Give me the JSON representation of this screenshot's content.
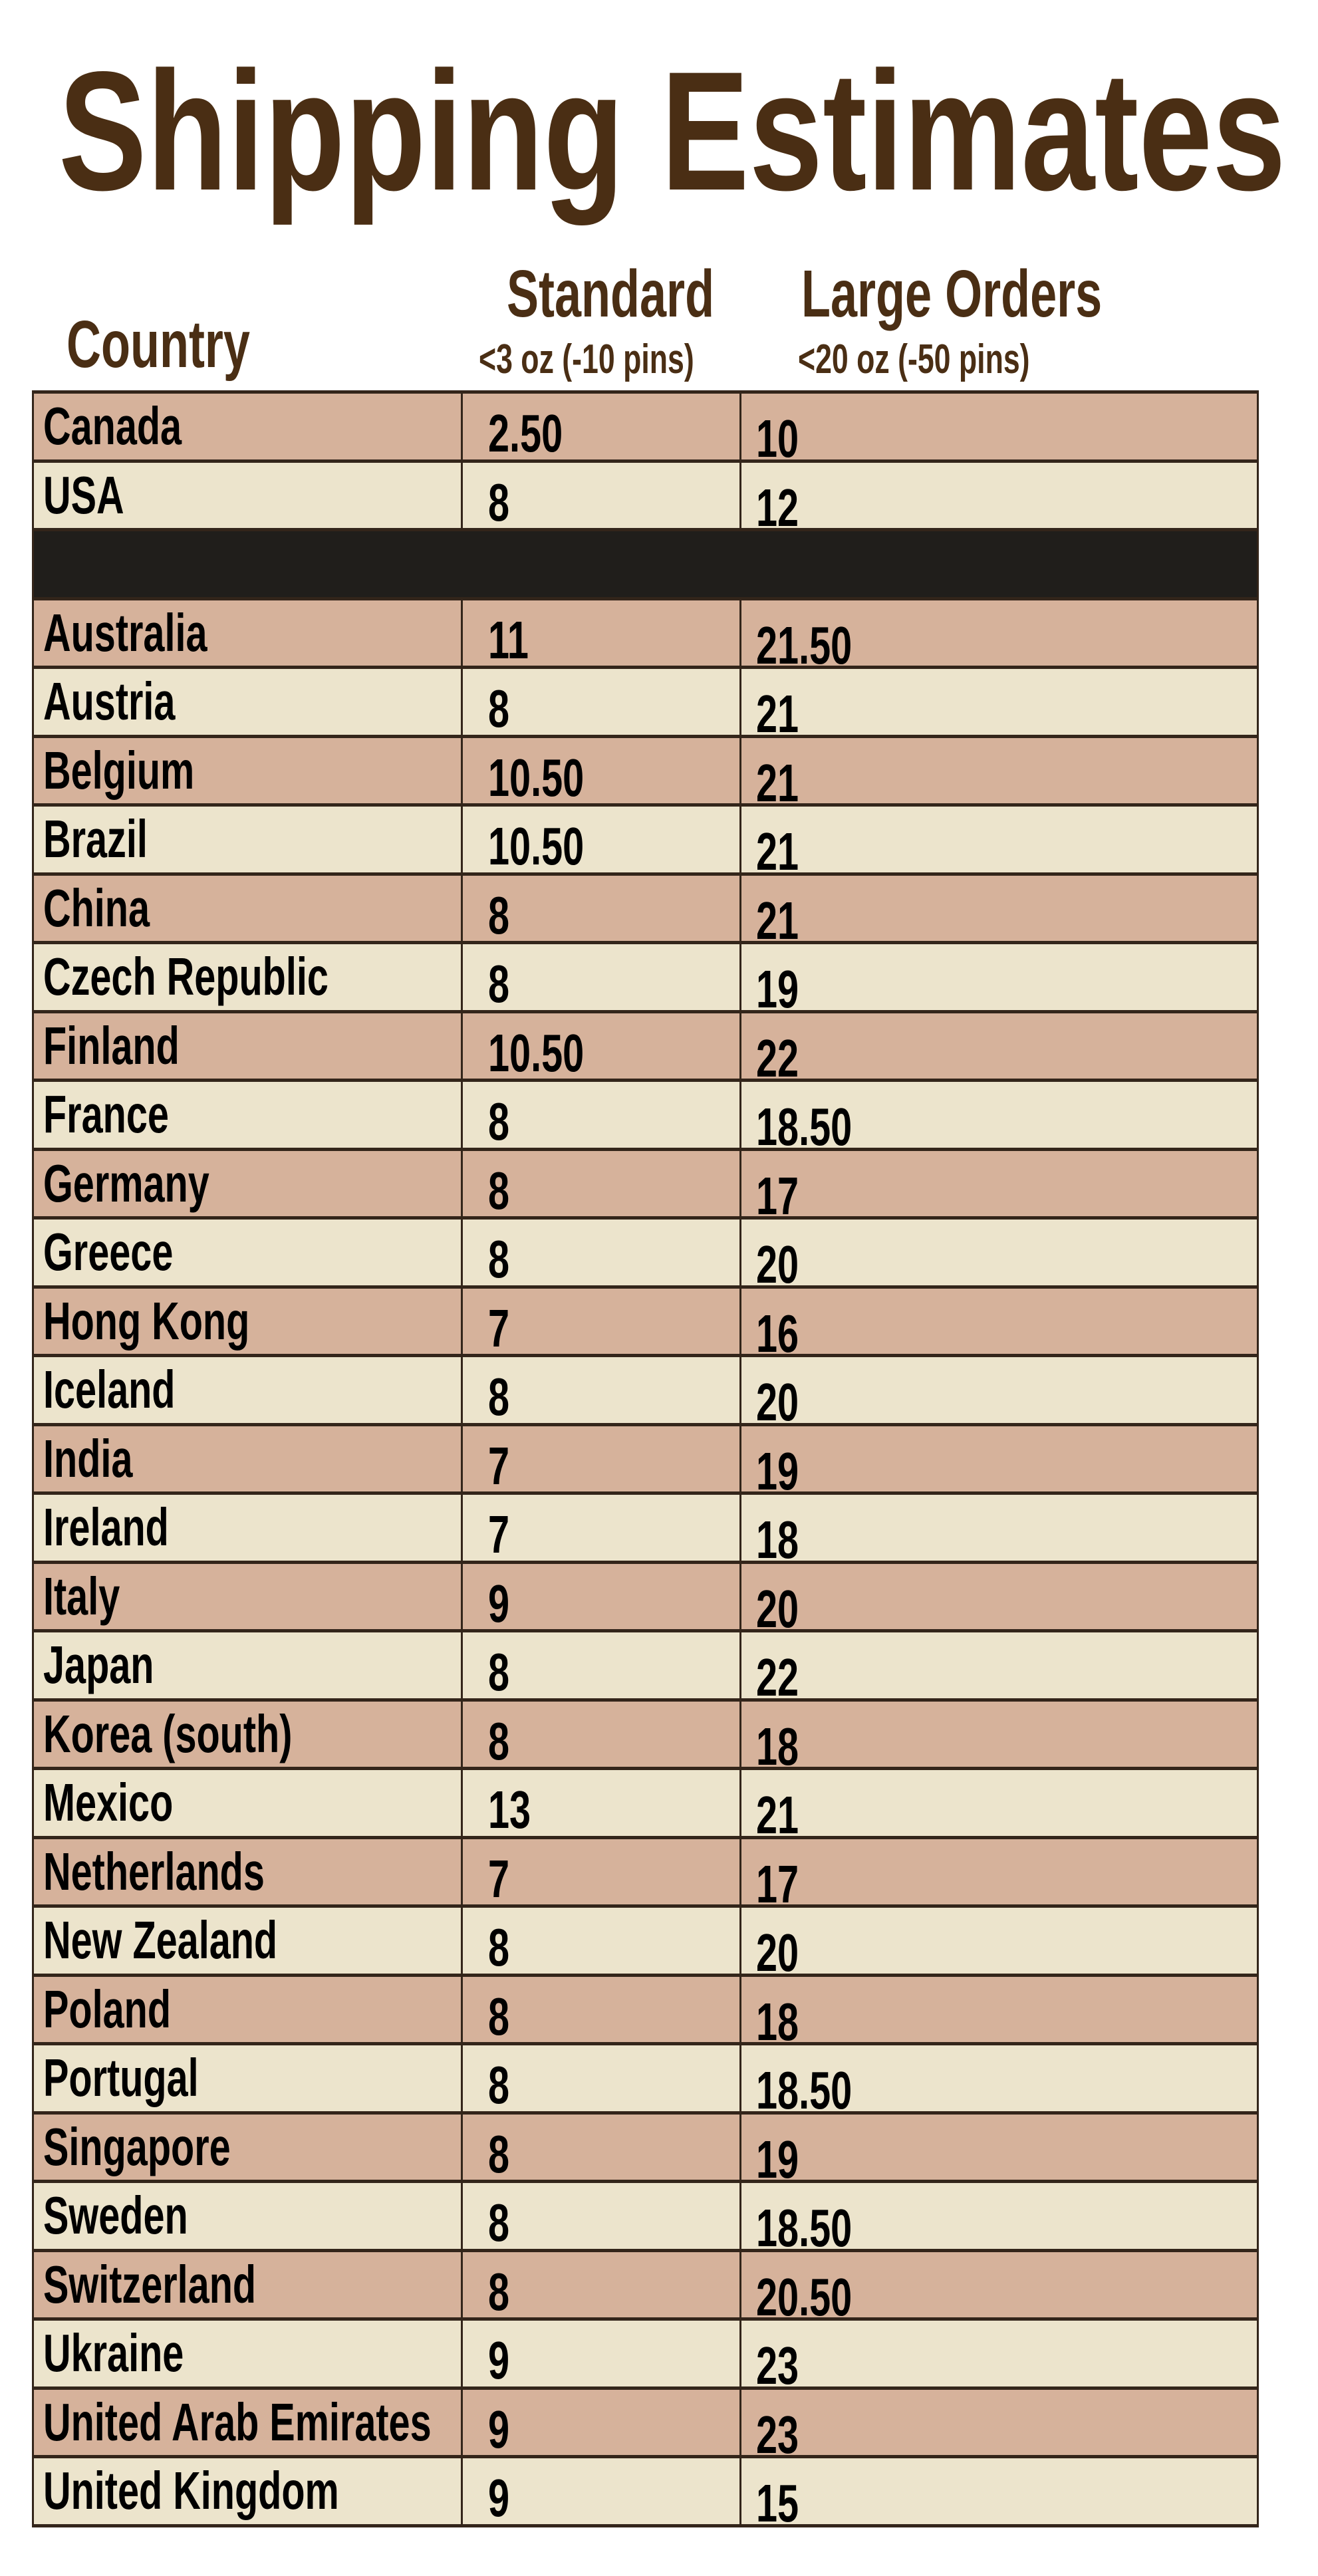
{
  "title": "Shipping Estimates",
  "colors": {
    "title": "#4a2e14",
    "row_dark": "#d6b29b",
    "row_light": "#ece4cc",
    "separator": "#201e1b",
    "border": "#33251a"
  },
  "headers": {
    "country": "Country",
    "standard": "Standard",
    "standard_sub": "<3 oz (-10 pins)",
    "large": "Large Orders",
    "large_sub": "<20 oz (-50 pins)"
  },
  "rows_domestic": [
    {
      "country": "Canada",
      "standard": "2.50",
      "large": "10"
    },
    {
      "country": "USA",
      "standard": "8",
      "large": "12"
    }
  ],
  "rows_international": [
    {
      "country": "Australia",
      "standard": "11",
      "large": "21.50"
    },
    {
      "country": "Austria",
      "standard": "8",
      "large": "21"
    },
    {
      "country": "Belgium",
      "standard": "10.50",
      "large": "21"
    },
    {
      "country": "Brazil",
      "standard": "10.50",
      "large": "21"
    },
    {
      "country": "China",
      "standard": "8",
      "large": "21"
    },
    {
      "country": "Czech Republic",
      "standard": "8",
      "large": "19"
    },
    {
      "country": "Finland",
      "standard": "10.50",
      "large": "22"
    },
    {
      "country": "France",
      "standard": "8",
      "large": "18.50"
    },
    {
      "country": "Germany",
      "standard": "8",
      "large": "17"
    },
    {
      "country": "Greece",
      "standard": "8",
      "large": "20"
    },
    {
      "country": "Hong Kong",
      "standard": "7",
      "large": "16"
    },
    {
      "country": "Iceland",
      "standard": "8",
      "large": "20"
    },
    {
      "country": "India",
      "standard": "7",
      "large": "19"
    },
    {
      "country": "Ireland",
      "standard": "7",
      "large": "18"
    },
    {
      "country": "Italy",
      "standard": "9",
      "large": "20"
    },
    {
      "country": "Japan",
      "standard": "8",
      "large": "22"
    },
    {
      "country": "Korea (south)",
      "standard": "8",
      "large": "18"
    },
    {
      "country": "Mexico",
      "standard": "13",
      "large": "21"
    },
    {
      "country": "Netherlands",
      "standard": "7",
      "large": "17"
    },
    {
      "country": "New Zealand",
      "standard": "8",
      "large": "20"
    },
    {
      "country": "Poland",
      "standard": "8",
      "large": "18"
    },
    {
      "country": "Portugal",
      "standard": "8",
      "large": "18.50"
    },
    {
      "country": "Singapore",
      "standard": "8",
      "large": "19"
    },
    {
      "country": "Sweden",
      "standard": "8",
      "large": "18.50"
    },
    {
      "country": "Switzerland",
      "standard": "8",
      "large": "20.50"
    },
    {
      "country": "Ukraine",
      "standard": "9",
      "large": "23"
    },
    {
      "country": "United Arab Emirates",
      "standard": "9",
      "large": "23"
    },
    {
      "country": "United Kingdom",
      "standard": "9",
      "large": "15"
    }
  ]
}
